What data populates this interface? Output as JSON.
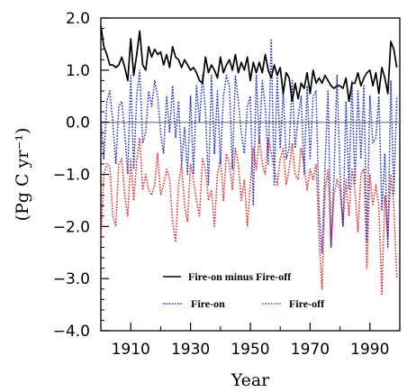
{
  "chart_data": {
    "type": "line",
    "xlabel": "Year",
    "ylabel": "(Pg C yr⁻¹)",
    "xlim": [
      1900,
      2000
    ],
    "ylim": [
      -4.0,
      2.0
    ],
    "xticks": [
      1910,
      1930,
      1950,
      1970,
      1990
    ],
    "xtick_labels": [
      "1910",
      "1930",
      "1950",
      "1970",
      "1990"
    ],
    "yticks": [
      -4.0,
      -3.0,
      -2.0,
      -1.0,
      0.0,
      1.0,
      2.0
    ],
    "ytick_labels": [
      "−4.0",
      "−3.0",
      "−2.0",
      "−1.0",
      "0.0",
      "1.0",
      "2.0"
    ],
    "reference_line": {
      "y": 0.0,
      "color": "#999999"
    },
    "legend": {
      "placement": "bottom-center",
      "entries": [
        {
          "label": "Fire-on minus Fire-off",
          "color": "#000000",
          "style": "solid"
        },
        {
          "label": "Fire-on",
          "color": "#1f2fd0",
          "style": "dotted"
        },
        {
          "label": "Fire-off",
          "color": "#ee2222",
          "style": "dotted"
        }
      ]
    },
    "x": [
      1900,
      1901,
      1902,
      1903,
      1904,
      1905,
      1906,
      1907,
      1908,
      1909,
      1910,
      1911,
      1912,
      1913,
      1914,
      1915,
      1916,
      1917,
      1918,
      1919,
      1920,
      1921,
      1922,
      1923,
      1924,
      1925,
      1926,
      1927,
      1928,
      1929,
      1930,
      1931,
      1932,
      1933,
      1934,
      1935,
      1936,
      1937,
      1938,
      1939,
      1940,
      1941,
      1942,
      1943,
      1944,
      1945,
      1946,
      1947,
      1948,
      1949,
      1950,
      1951,
      1952,
      1953,
      1954,
      1955,
      1956,
      1957,
      1958,
      1959,
      1960,
      1961,
      1962,
      1963,
      1964,
      1965,
      1966,
      1967,
      1968,
      1969,
      1970,
      1971,
      1972,
      1973,
      1974,
      1975,
      1976,
      1977,
      1978,
      1979,
      1980,
      1981,
      1982,
      1983,
      1984,
      1985,
      1986,
      1987,
      1988,
      1989,
      1990,
      1991,
      1992,
      1993,
      1994,
      1995,
      1996,
      1997,
      1998,
      1999
    ],
    "series": [
      {
        "name": "Fire-on minus Fire-off",
        "color": "#000000",
        "style": "solid",
        "values": [
          1.85,
          1.45,
          1.3,
          1.1,
          1.1,
          1.05,
          1.1,
          1.25,
          1.05,
          0.8,
          1.6,
          0.9,
          1.3,
          1.75,
          1.1,
          1.0,
          1.45,
          1.25,
          1.4,
          1.3,
          1.35,
          1.1,
          1.3,
          1.05,
          1.45,
          1.25,
          1.2,
          1.05,
          1.2,
          1.1,
          1.0,
          1.05,
          0.95,
          0.8,
          0.75,
          1.25,
          0.95,
          1.1,
          1.0,
          0.85,
          1.25,
          0.95,
          1.1,
          1.2,
          1.0,
          1.3,
          0.95,
          1.15,
          1.0,
          1.25,
          0.8,
          1.15,
          0.95,
          1.15,
          0.95,
          1.3,
          1.0,
          0.85,
          1.1,
          0.9,
          1.05,
          0.55,
          0.95,
          0.85,
          0.4,
          0.75,
          0.45,
          0.75,
          0.65,
          0.95,
          0.55,
          1.0,
          0.75,
          0.85,
          0.75,
          0.9,
          0.8,
          0.7,
          0.65,
          0.7,
          0.7,
          0.65,
          0.85,
          0.4,
          0.75,
          0.75,
          0.95,
          0.7,
          0.85,
          0.95,
          1.0,
          0.7,
          0.95,
          0.55,
          1.05,
          0.85,
          0.55,
          1.55,
          1.4,
          1.05
        ]
      },
      {
        "name": "Fire-on",
        "color": "#1f2fd0",
        "style": "dotted",
        "values": [
          0.1,
          -0.7,
          0.4,
          0.6,
          0.0,
          -0.8,
          0.3,
          0.4,
          -0.2,
          -1.0,
          0.9,
          -0.9,
          0.5,
          1.0,
          -0.4,
          -0.2,
          0.6,
          0.3,
          0.8,
          0.5,
          -0.2,
          -0.6,
          0.5,
          -0.2,
          0.7,
          -0.3,
          0.4,
          -0.8,
          -0.1,
          -1.0,
          0.5,
          -1.0,
          0.7,
          0.0,
          0.9,
          0.2,
          -1.2,
          0.9,
          -0.6,
          0.6,
          -0.8,
          0.5,
          0.9,
          0.7,
          -0.9,
          0.9,
          0.4,
          -0.2,
          -0.6,
          0.3,
          0.5,
          -1.6,
          0.9,
          -0.4,
          0.8,
          0.3,
          -0.8,
          1.6,
          -1.2,
          0.9,
          -0.5,
          0.6,
          -0.7,
          -0.5,
          0.8,
          -0.5,
          0.1,
          0.5,
          -1.0,
          0.7,
          -0.7,
          0.5,
          0.6,
          -1.7,
          -2.5,
          -0.8,
          0.6,
          -2.4,
          -1.0,
          0.9,
          -1.0,
          -2.0,
          0.4,
          -1.3,
          0.8,
          -1.2,
          0.6,
          -0.7,
          0.7,
          -2.3,
          0.5,
          -0.4,
          -0.3,
          0.5,
          -1.7,
          -0.6,
          -2.4,
          0.8,
          -1.4,
          0.5
        ]
      },
      {
        "name": "Fire-off",
        "color": "#ee2222",
        "style": "dotted",
        "values": [
          -2.3,
          -1.0,
          -0.8,
          -0.85,
          -1.8,
          -2.0,
          -0.8,
          -0.7,
          -1.4,
          -1.8,
          -0.7,
          -1.5,
          -0.75,
          -0.3,
          -1.3,
          -1.0,
          -1.3,
          -1.4,
          -1.2,
          -0.6,
          -1.4,
          -1.2,
          -0.9,
          -1.1,
          -1.9,
          -2.3,
          -1.2,
          -0.8,
          -1.6,
          -1.9,
          -0.8,
          -1.1,
          -1.5,
          -1.8,
          -0.7,
          -0.9,
          -1.5,
          -1.3,
          -2.0,
          -1.0,
          -0.7,
          -1.5,
          -0.6,
          -0.8,
          -1.3,
          -0.5,
          -0.8,
          -1.5,
          -1.1,
          -2.0,
          -1.2,
          -0.5,
          -0.9,
          -0.3,
          -0.8,
          -1.0,
          -0.3,
          -0.6,
          -0.9,
          -1.2,
          -0.7,
          -0.5,
          -1.2,
          -0.9,
          -0.4,
          -1.0,
          -1.1,
          -0.5,
          -0.8,
          -1.3,
          -0.9,
          -1.1,
          -0.8,
          -2.2,
          -3.2,
          -1.3,
          -0.9,
          -2.4,
          -1.4,
          -1.1,
          -1.3,
          -2.0,
          -1.1,
          -1.8,
          -0.9,
          -1.3,
          -2.1,
          -1.0,
          -0.9,
          -2.8,
          -1.0,
          -1.6,
          -1.2,
          -1.6,
          -3.3,
          -1.4,
          -2.2,
          -1.0,
          -1.6,
          -3.0
        ]
      }
    ]
  }
}
